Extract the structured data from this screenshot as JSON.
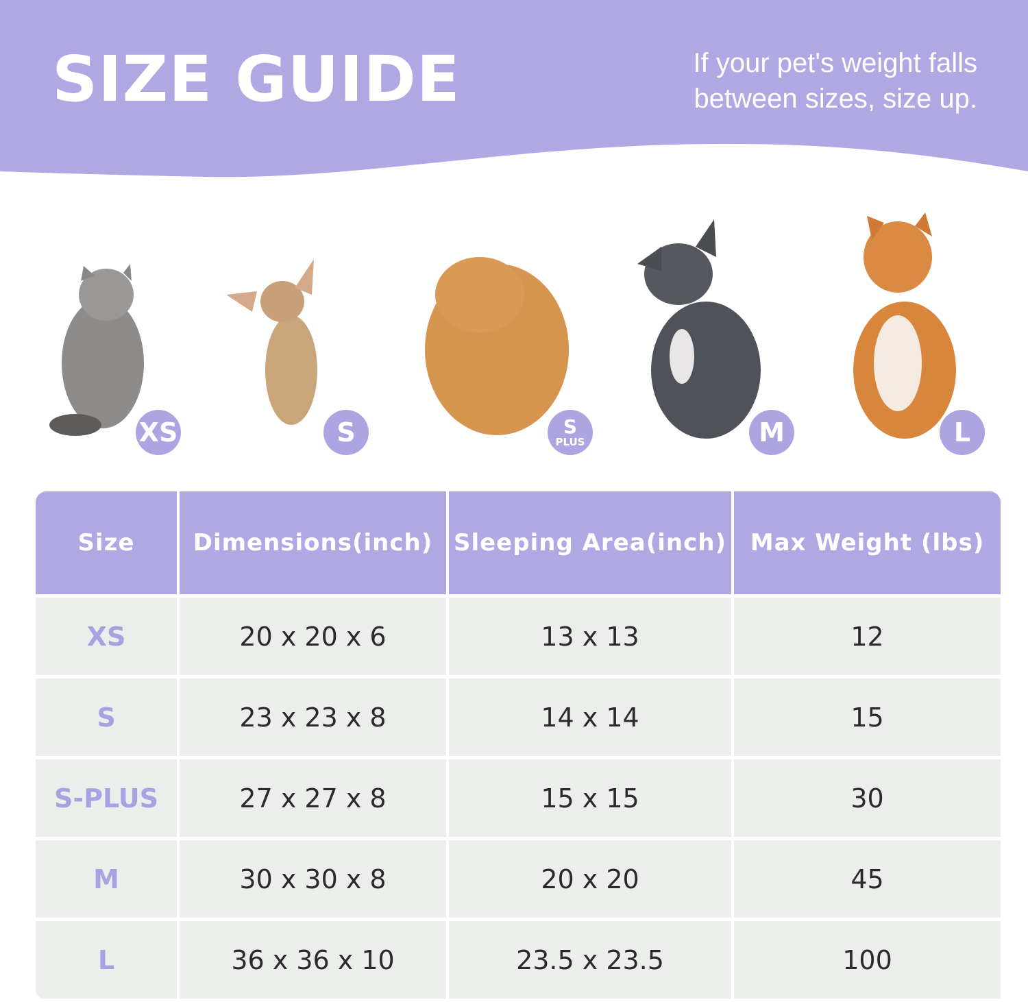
{
  "header": {
    "title": "SIZE GUIDE",
    "note_line1": "If your pet's weight falls",
    "note_line2": "between sizes, size up."
  },
  "pets": [
    {
      "animal": "cat",
      "badge": "XS",
      "badge_sub": ""
    },
    {
      "animal": "chihuahua",
      "badge": "S",
      "badge_sub": ""
    },
    {
      "animal": "pomeranian",
      "badge": "S",
      "badge_sub": "PLUS"
    },
    {
      "animal": "french-bulldog",
      "badge": "M",
      "badge_sub": ""
    },
    {
      "animal": "shiba-inu",
      "badge": "L",
      "badge_sub": ""
    }
  ],
  "table": {
    "headers": [
      "Size",
      "Dimensions(inch)",
      "Sleeping Area(inch)",
      "Max Weight (lbs)"
    ],
    "rows": [
      [
        "XS",
        "20 x 20 x 6",
        "13 x 13",
        "12"
      ],
      [
        "S",
        "23 x 23 x 8",
        "14 x 14",
        "15"
      ],
      [
        "S-PLUS",
        "27 x 27 x 8",
        "15 x 15",
        "30"
      ],
      [
        "M",
        "30 x 30 x 8",
        "20 x 20",
        "45"
      ],
      [
        "L",
        "36 x 36 x 10",
        "23.5 x 23.5",
        "100"
      ]
    ]
  },
  "colors": {
    "accent": "#afa8e3",
    "row_bg": "#eceeec",
    "text": "#2a2a2a"
  }
}
